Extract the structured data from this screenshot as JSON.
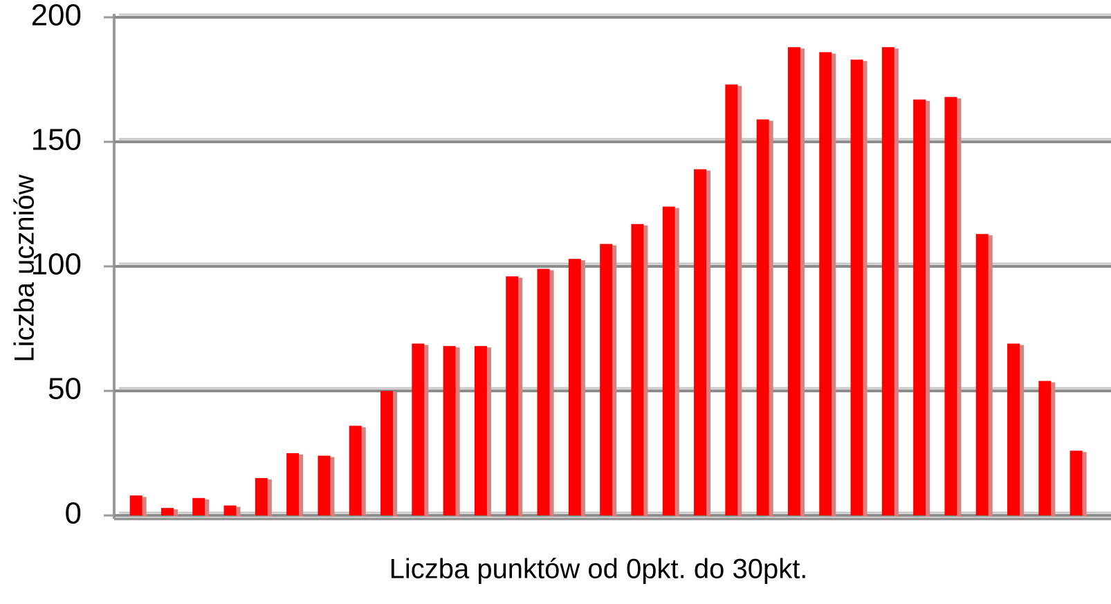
{
  "chart_data": {
    "type": "bar",
    "y_label": "Liczba uczniów",
    "x_label": "Liczba punktów  od 0pkt. do 30pkt.",
    "categories": [
      null,
      null,
      null,
      null,
      null,
      null,
      null,
      null,
      null,
      null,
      null,
      null,
      null,
      null,
      null,
      null,
      null,
      null,
      null,
      null,
      null,
      null,
      null,
      null,
      null,
      null,
      null,
      null,
      null,
      null,
      null
    ],
    "values": [
      8,
      3,
      7,
      4,
      15,
      25,
      24,
      36,
      50,
      69,
      68,
      68,
      96,
      99,
      103,
      109,
      117,
      124,
      139,
      173,
      159,
      188,
      186,
      183,
      188,
      167,
      168,
      113,
      69,
      54,
      26
    ],
    "color": "#ff0000",
    "ylim": [
      0,
      200
    ],
    "yticks": [
      0,
      50,
      100,
      150,
      200
    ],
    "grid": true
  }
}
